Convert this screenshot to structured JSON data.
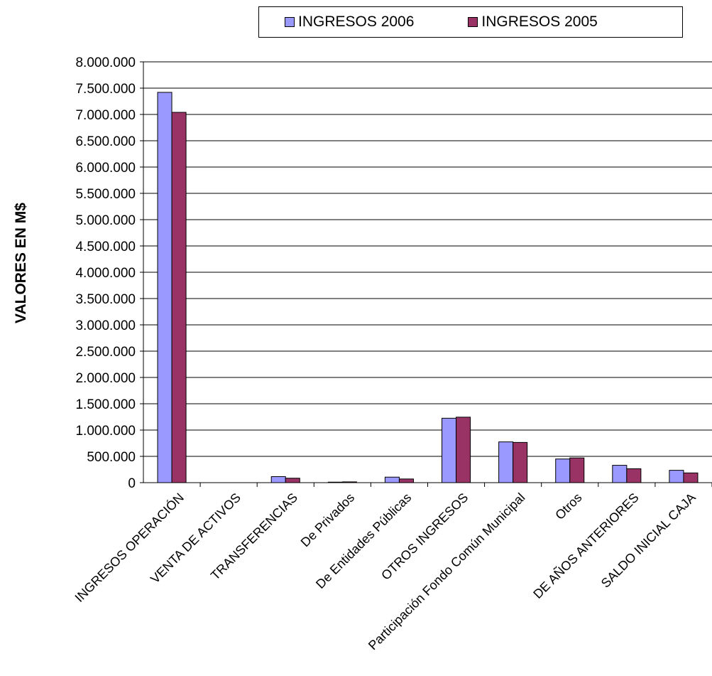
{
  "chart_data": {
    "type": "bar",
    "title": "",
    "xlabel": "",
    "ylabel": "VALORES EN M$",
    "ylim": [
      0,
      8000000
    ],
    "ytick_step": 500000,
    "ytick_labels": [
      "0",
      "500.000",
      "1.000.000",
      "1.500.000",
      "2.000.000",
      "2.500.000",
      "3.000.000",
      "3.500.000",
      "4.000.000",
      "4.500.000",
      "5.000.000",
      "5.500.000",
      "6.000.000",
      "6.500.000",
      "7.000.000",
      "7.500.000",
      "8.000.000"
    ],
    "grid": "horizontal",
    "legend_position": "top",
    "categories": [
      "INGRESOS OPERACIÓN",
      "VENTA DE ACTIVOS",
      "TRANSFERENCIAS",
      "De Privados",
      "De Entidades Públicas",
      "OTROS INGRESOS",
      "Participación Fondo Común Municipal",
      "Otros",
      "DE AÑOS ANTERIORES",
      "SALDO INICIAL CAJA"
    ],
    "series": [
      {
        "name": "INGRESOS 2006",
        "color": "#9999ff",
        "values": [
          7420000,
          0,
          115000,
          10000,
          105000,
          1225000,
          775000,
          450000,
          330000,
          235000
        ]
      },
      {
        "name": "INGRESOS 2005",
        "color": "#993366",
        "values": [
          7040000,
          0,
          85000,
          15000,
          70000,
          1245000,
          765000,
          470000,
          265000,
          185000
        ]
      }
    ]
  }
}
